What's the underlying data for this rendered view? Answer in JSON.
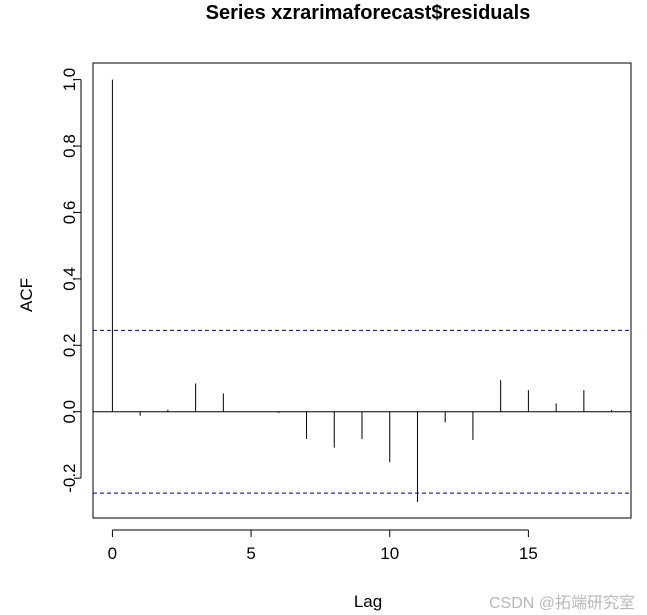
{
  "chart_data": {
    "type": "bar",
    "title": "Series  xzrarimaforecast$residuals",
    "xlabel": "Lag",
    "ylabel": "ACF",
    "xlim": [
      -0.7,
      18.7
    ],
    "ylim": [
      -0.32,
      1.05
    ],
    "x_ticks": [
      0,
      5,
      10,
      15
    ],
    "y_ticks": [
      -0.2,
      0.0,
      0.2,
      0.4,
      0.6,
      0.8,
      1.0
    ],
    "x_tick_labels": [
      "0",
      "5",
      "10",
      "15"
    ],
    "y_tick_labels": [
      "-0.2",
      "0.0",
      "0.2",
      "0.4",
      "0.6",
      "0.8",
      "1.0"
    ],
    "lags": [
      0,
      1,
      2,
      3,
      4,
      5,
      6,
      7,
      8,
      9,
      10,
      11,
      12,
      13,
      14,
      15,
      16,
      17,
      18
    ],
    "values": [
      1.0,
      -0.012,
      0.006,
      0.085,
      0.055,
      0.0,
      -0.004,
      -0.082,
      -0.108,
      -0.082,
      -0.152,
      -0.272,
      -0.032,
      -0.085,
      0.095,
      0.065,
      0.025,
      0.065,
      0.005
    ],
    "confidence_bound": 0.245,
    "zero_line": true,
    "colors": {
      "bars": "#000000",
      "ci": "#00008b",
      "frame": "#000000"
    }
  },
  "watermark": "CSDN @拓端研究室"
}
